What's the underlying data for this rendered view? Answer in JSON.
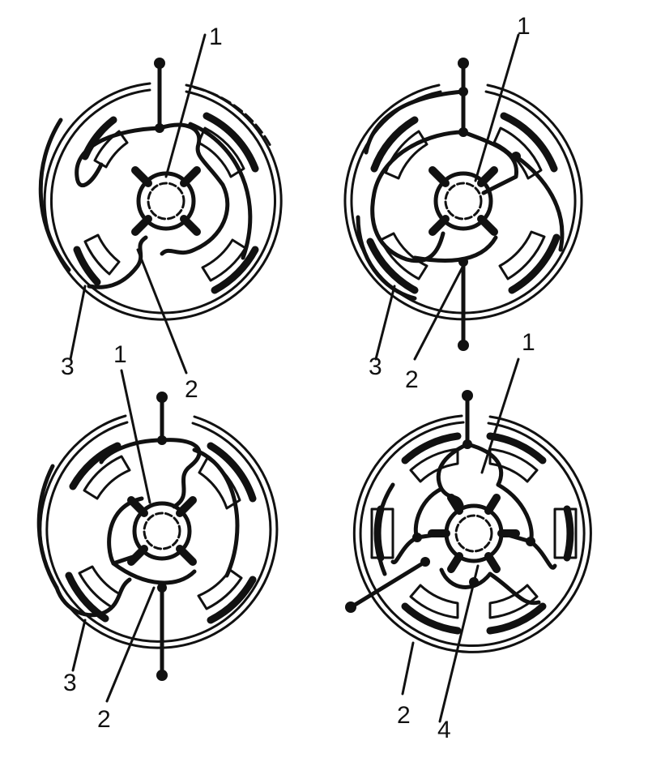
{
  "colors": {
    "ink": "#111111",
    "paper": "#ffffff"
  },
  "views": [
    {
      "name": "view-top-left",
      "callouts": [
        "1",
        "2",
        "3"
      ]
    },
    {
      "name": "view-top-right",
      "callouts": [
        "1",
        "2",
        "3"
      ]
    },
    {
      "name": "view-bottom-left",
      "callouts": [
        "1",
        "2",
        "3"
      ]
    },
    {
      "name": "view-bottom-right",
      "callouts": [
        "1",
        "2",
        "4"
      ]
    }
  ]
}
